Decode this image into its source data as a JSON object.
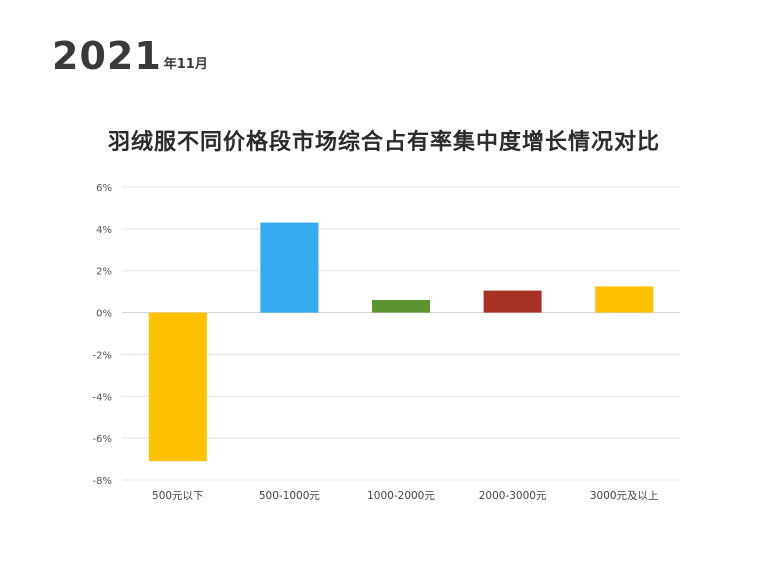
{
  "header": {
    "year": "2021",
    "month_suffix": "年11月"
  },
  "chart_data": {
    "type": "bar",
    "title": "羽绒服不同价格段市场综合占有率集中度增长情况对比",
    "categories": [
      "500元以下",
      "500-1000元",
      "1000-2000元",
      "2000-3000元",
      "3000元及以上"
    ],
    "values": [
      -7.1,
      4.3,
      0.6,
      1.05,
      1.25
    ],
    "colors": [
      "#ffc000",
      "#35aaef",
      "#5b9430",
      "#a93226",
      "#ffc000"
    ],
    "ylim": [
      -8,
      6
    ],
    "yticks": [
      6,
      4,
      2,
      0,
      -2,
      -4,
      -6,
      -8
    ],
    "ytick_labels": [
      "6%",
      "4%",
      "2%",
      "0%",
      "-2%",
      "-4%",
      "-6%",
      "-8%"
    ],
    "xlabel": "",
    "ylabel": "",
    "grid": true,
    "legend": "none"
  }
}
